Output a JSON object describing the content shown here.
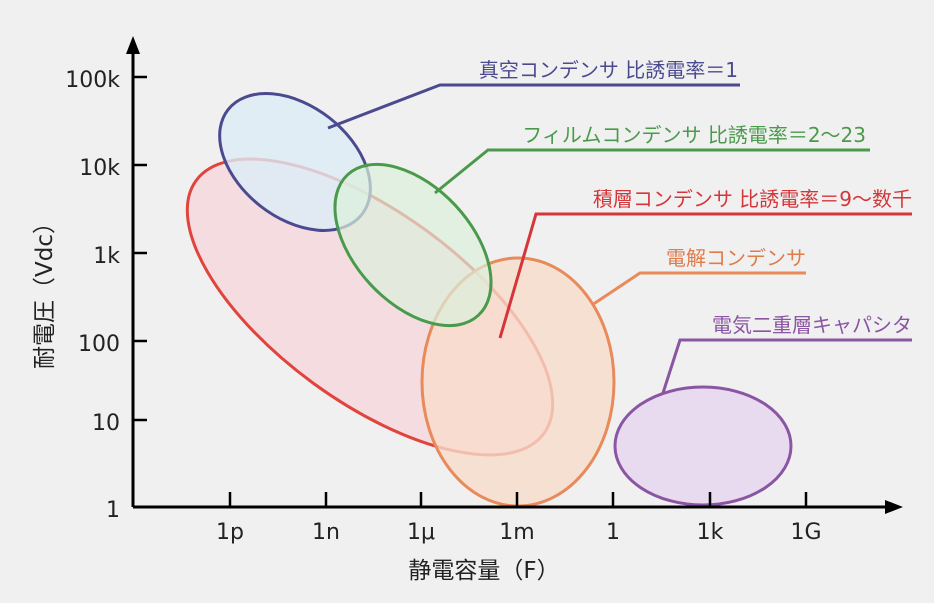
{
  "y_axis": {
    "title": "耐電圧（Vdc）",
    "ticks": [
      "1",
      "10",
      "100",
      "1k",
      "10k",
      "100k"
    ]
  },
  "x_axis": {
    "title": "静電容量（F）",
    "ticks": [
      "1p",
      "1n",
      "1μ",
      "1m",
      "1",
      "1k",
      "1G"
    ]
  },
  "regions": [
    {
      "id": "vacuum",
      "label": "真空コンデンサ 比誘電率＝1",
      "color": "#4b4a8f",
      "fill": "#dcecf6"
    },
    {
      "id": "film",
      "label": "フィルムコンデンサ 比誘電率＝2〜23",
      "color": "#4a9a4c",
      "fill": "#dcefdc"
    },
    {
      "id": "ceramic",
      "label": "積層コンデンサ 比誘電率＝9〜数千",
      "color": "#d4363a",
      "fill": "#f6d8de"
    },
    {
      "id": "electrolytic",
      "label": "電解コンデンサ",
      "color": "#e07b4a",
      "fill": "#f7dccb"
    },
    {
      "id": "edlc",
      "label": "電気二重層キャパシタ",
      "color": "#8a55a2",
      "fill": "#e8d8ee"
    }
  ]
}
